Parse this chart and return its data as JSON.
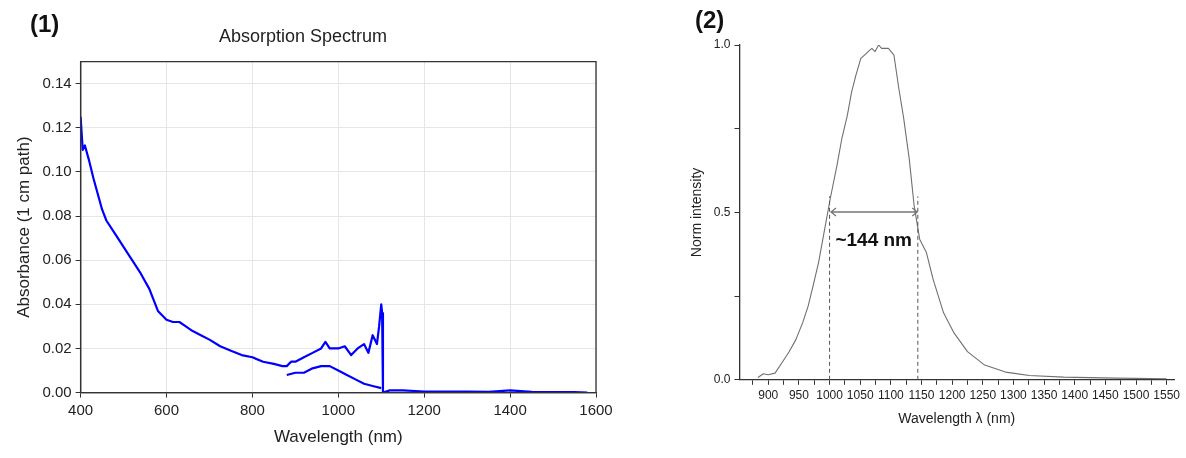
{
  "chart_data": [
    {
      "type": "line",
      "title": "Absorption Spectrum",
      "xlabel": "Wavelength (nm)",
      "ylabel": "Absorbance (1 cm path)",
      "annotations": [
        "(1)"
      ],
      "xlim": [
        400,
        1600
      ],
      "xticks": [
        400,
        600,
        800,
        1000,
        1200,
        1400,
        1600
      ],
      "ylim": [
        0,
        0.15
      ],
      "yticks": [
        {
          "value": 0,
          "label": "0.00"
        },
        {
          "value": 0.02,
          "label": "0.02"
        },
        {
          "value": 0.04,
          "label": "0.04"
        },
        {
          "value": 0.06,
          "label": "0.06"
        },
        {
          "value": 0.08,
          "label": "0.08"
        },
        {
          "value": 0.1,
          "label": "0.10"
        },
        {
          "value": 0.12,
          "label": "0.12"
        },
        {
          "value": 0.14,
          "label": "0.14"
        }
      ],
      "grid": true,
      "legend": false,
      "series": [
        {
          "color": "#0000ff",
          "x": [
            400,
            405,
            410,
            420,
            430,
            440,
            450,
            460,
            480,
            500,
            520,
            540,
            560,
            580,
            600,
            615,
            630,
            645,
            660,
            680,
            700,
            725,
            750,
            775,
            800,
            825,
            850,
            870,
            880,
            890,
            900,
            920,
            940,
            960,
            970,
            980,
            1000,
            1015,
            1030,
            1045,
            1060,
            1070,
            1080,
            1090,
            1095,
            1100,
            1102,
            1104,
            1120,
            1150,
            1200,
            1250,
            1300,
            1350,
            1400,
            1450,
            1500,
            1550,
            1580
          ],
          "values": [
            0.125,
            0.11,
            0.112,
            0.105,
            0.097,
            0.09,
            0.083,
            0.078,
            0.072,
            0.066,
            0.06,
            0.054,
            0.047,
            0.037,
            0.033,
            0.032,
            0.032,
            0.03,
            0.028,
            0.026,
            0.024,
            0.021,
            0.019,
            0.017,
            0.016,
            0.014,
            0.013,
            0.012,
            0.012,
            0.014,
            0.014,
            0.016,
            0.018,
            0.02,
            0.023,
            0.02,
            0.02,
            0.021,
            0.017,
            0.02,
            0.022,
            0.018,
            0.026,
            0.022,
            0.03,
            0.04,
            0.036,
            0.0,
            0.001,
            0.001,
            0.0005,
            0.0005,
            0.0005,
            0.0003,
            0.001,
            0.0003,
            0.0002,
            0.0002,
            0.0
          ]
        },
        {
          "color": "#0000ff",
          "x": [
            880,
            900,
            920,
            940,
            960,
            980,
            1000,
            1020,
            1040,
            1060,
            1080,
            1100
          ],
          "values": [
            0.008,
            0.009,
            0.009,
            0.011,
            0.012,
            0.012,
            0.01,
            0.008,
            0.006,
            0.004,
            0.003,
            0.002
          ]
        }
      ]
    },
    {
      "type": "line",
      "xlabel": "Wavelength λ (nm)",
      "ylabel": "Norm intensity",
      "annotations": [
        "(2)",
        "~144 nm"
      ],
      "xlim": [
        853,
        1562
      ],
      "xticks": [
        {
          "value": 875,
          "label": null
        },
        900,
        {
          "value": 925,
          "label": null
        },
        950,
        {
          "value": 975,
          "label": null
        },
        1000,
        {
          "value": 1025,
          "label": null
        },
        1050,
        {
          "value": 1075,
          "label": null
        },
        1100,
        {
          "value": 1125,
          "label": null
        },
        1150,
        {
          "value": 1175,
          "label": null
        },
        1200,
        {
          "value": 1225,
          "label": null
        },
        1250,
        {
          "value": 1275,
          "label": null
        },
        1300,
        {
          "value": 1325,
          "label": null
        },
        1350,
        {
          "value": 1375,
          "label": null
        },
        1400,
        {
          "value": 1425,
          "label": null
        },
        1450,
        {
          "value": 1475,
          "label": null
        },
        1500,
        {
          "value": 1525,
          "label": null
        },
        1550
      ],
      "ylim": [
        0,
        1
      ],
      "yticks": [
        {
          "value": 0,
          "label": "0.0"
        },
        {
          "value": 0.25,
          "label": null
        },
        {
          "value": 0.5,
          "label": "0.5"
        },
        {
          "value": 0.75,
          "label": null
        },
        {
          "value": 1,
          "label": "1.0"
        }
      ],
      "grid": false,
      "legend": false,
      "ref_lines": [
        {
          "axis": "x",
          "value": 1000,
          "line_style": "dashed",
          "color": "#555555"
        },
        {
          "axis": "x",
          "value": 1144,
          "line_style": "dashed",
          "color": "#555555"
        }
      ],
      "series": [
        {
          "color": "#707070",
          "x": [
            883,
            892,
            900,
            911,
            922,
            934,
            945,
            956,
            965,
            973,
            982,
            990,
            1001,
            1012,
            1020,
            1029,
            1036,
            1043,
            1051,
            1057,
            1063,
            1069,
            1074,
            1080,
            1085,
            1091,
            1096,
            1105,
            1113,
            1121,
            1130,
            1138,
            1147,
            1158,
            1169,
            1186,
            1203,
            1225,
            1253,
            1287,
            1326,
            1382,
            1466,
            1550
          ],
          "values": [
            0.007,
            0.018,
            0.015,
            0.02,
            0.05,
            0.084,
            0.12,
            0.17,
            0.22,
            0.28,
            0.35,
            0.43,
            0.54,
            0.64,
            0.72,
            0.79,
            0.86,
            0.91,
            0.96,
            0.97,
            0.98,
            0.99,
            0.98,
            1.0,
            0.99,
            0.99,
            0.99,
            0.97,
            0.87,
            0.78,
            0.66,
            0.52,
            0.42,
            0.38,
            0.3,
            0.2,
            0.14,
            0.084,
            0.044,
            0.023,
            0.013,
            0.008,
            0.005,
            0.003
          ]
        }
      ]
    }
  ]
}
